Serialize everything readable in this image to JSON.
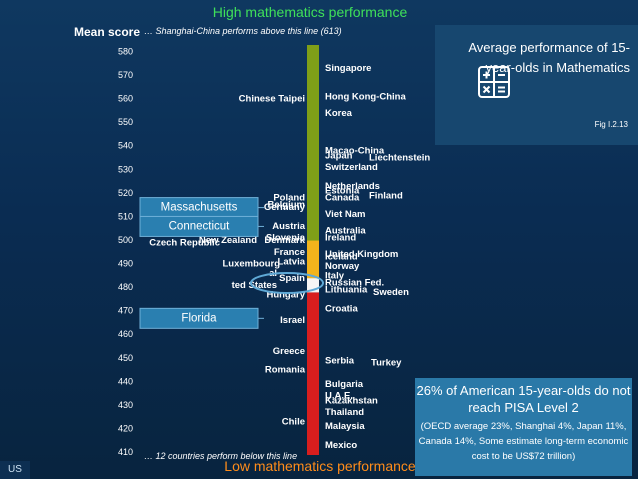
{
  "chart_data": {
    "type": "ranking-scale",
    "title_top": "High mathematics performance",
    "title_bottom": "Low mathematics performance",
    "ylabel": "Mean score",
    "ylim": [
      409,
      583
    ],
    "ticks": [
      "580",
      "570",
      "560",
      "550",
      "540",
      "530",
      "520",
      "510",
      "500",
      "490",
      "480",
      "470",
      "460",
      "450",
      "440",
      "430",
      "420",
      "410"
    ],
    "note_top": "… Shanghai-China performs above this line (613)",
    "note_bottom": "… 12 countries perform below this line",
    "bands": [
      {
        "from": 409,
        "to": 478,
        "color": "#d81e1e"
      },
      {
        "from": 478,
        "to": 499,
        "color": "#f5f5f5"
      },
      {
        "from": 499,
        "to": 583,
        "color": "#7f9f18"
      }
    ],
    "highlight_band": {
      "from": 484,
      "to": 500,
      "color": "#f2b41c"
    },
    "countries_left": [
      {
        "name": "Chinese Taipei",
        "score": 560
      },
      {
        "name": "Poland",
        "score": 518
      },
      {
        "name": "Belgium",
        "score": 515
      },
      {
        "name": "Germany",
        "score": 514
      },
      {
        "name": "Austria",
        "score": 506
      },
      {
        "name": "Slovenia",
        "score": 501
      },
      {
        "name": "New Zealand",
        "score": 500
      },
      {
        "name": "Denmark",
        "score": 500
      },
      {
        "name": "Czech Republic",
        "score": 499
      },
      {
        "name": "France",
        "score": 495
      },
      {
        "name": "Latvia",
        "score": 491
      },
      {
        "name": "Luxembourg",
        "score": 490
      },
      {
        "name": "Spain",
        "score": 484
      },
      {
        "name": "Hungary",
        "score": 477
      },
      {
        "name": "Israel",
        "score": 466
      },
      {
        "name": "Greece",
        "score": 453
      },
      {
        "name": "Romania",
        "score": 445
      },
      {
        "name": "Chile",
        "score": 423
      }
    ],
    "countries_right": [
      {
        "name": "Singapore",
        "score": 573
      },
      {
        "name": "Hong Kong-China",
        "score": 561
      },
      {
        "name": "Korea",
        "score": 554
      },
      {
        "name": "Macao-China",
        "score": 538
      },
      {
        "name": "Japan",
        "score": 536
      },
      {
        "name": "Liechtenstein",
        "score": 535
      },
      {
        "name": "Switzerland",
        "score": 531
      },
      {
        "name": "Netherlands",
        "score": 523
      },
      {
        "name": "Estonia",
        "score": 521
      },
      {
        "name": "Finland",
        "score": 519
      },
      {
        "name": "Canada",
        "score": 518
      },
      {
        "name": "Viet Nam",
        "score": 511
      },
      {
        "name": "Australia",
        "score": 504
      },
      {
        "name": "Ireland",
        "score": 501
      },
      {
        "name": "United Kingdom",
        "score": 494
      },
      {
        "name": "Iceland",
        "score": 493
      },
      {
        "name": "Norway",
        "score": 489
      },
      {
        "name": "Italy",
        "score": 485
      },
      {
        "name": "Russian Fed.",
        "score": 482
      },
      {
        "name": "Lithuania",
        "score": 479
      },
      {
        "name": "Sweden",
        "score": 478
      },
      {
        "name": "Croatia",
        "score": 471
      },
      {
        "name": "Serbia",
        "score": 449
      },
      {
        "name": "Turkey",
        "score": 448
      },
      {
        "name": "Bulgaria",
        "score": 439
      },
      {
        "name": "U.A.E.",
        "score": 434
      },
      {
        "name": "Kazakhstan",
        "score": 432
      },
      {
        "name": "Thailand",
        "score": 427
      },
      {
        "name": "Malaysia",
        "score": 421
      },
      {
        "name": "Mexico",
        "score": 413
      }
    ],
    "us_states": [
      {
        "name": "Massachusetts",
        "score": 514
      },
      {
        "name": "Connecticut",
        "score": 506
      },
      {
        "name": "Florida",
        "score": 467
      }
    ],
    "partial_labels": [
      {
        "text": "al",
        "score": 486
      },
      {
        "text": "ted States",
        "score": 481
      }
    ]
  },
  "info_panel": {
    "title": "Average performance of 15-year-olds in Mathematics",
    "fig": "Fig I.2.13",
    "icon": "calculator-icon"
  },
  "callout": {
    "headline": "26% of American 15-year-olds do not reach PISA Level 2",
    "details": "(OECD average 23%, Shanghai 4%, Japan 11%, Canada 14%, Some estimate long-term economic cost to be US$72 trillion)"
  },
  "corner_tag": "US",
  "colors": {
    "high": "#3fe05a",
    "low": "#ff8c1a",
    "us_box": "#2a7fb0",
    "callout": "#2a79a8"
  }
}
